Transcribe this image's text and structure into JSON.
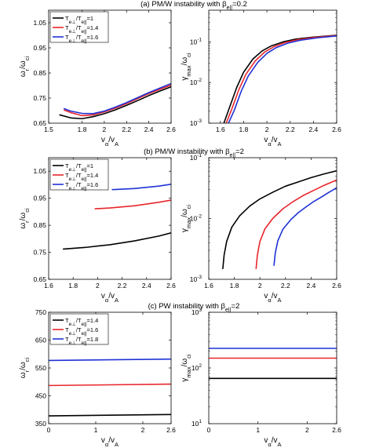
{
  "chart_data": [
    {
      "type": "line",
      "title": "(a) PM/W instability with β_e||=0.2",
      "title_parts": {
        "prefix": "(a) PM/W instability with ",
        "symbol": "β",
        "sub": "e||",
        "suffix": "=0.2"
      },
      "xlabel": "v_α/v_A",
      "ylabel": "ω_r/ω_ci",
      "xlim": [
        1.5,
        2.6
      ],
      "ylim": [
        0.65,
        1.1
      ],
      "yscale": "linear",
      "xticks": [
        "1.5",
        "1.8",
        "2",
        "2.2",
        "2.4",
        "2.6"
      ],
      "xtick_values": [
        1.5,
        1.8,
        2.0,
        2.2,
        2.4,
        2.6
      ],
      "yticks": [
        "0.65",
        "0.75",
        "0.85",
        "0.95",
        "1.05"
      ],
      "ytick_values": [
        0.65,
        0.75,
        0.85,
        0.95,
        1.05
      ],
      "legend": "top-left",
      "series": [
        {
          "name": "T_e⊥/T_e||=1",
          "color": "#000000",
          "x": [
            1.6,
            1.7,
            1.8,
            1.9,
            2.0,
            2.1,
            2.2,
            2.3,
            2.4,
            2.5,
            2.6
          ],
          "y": [
            0.683,
            0.671,
            0.668,
            0.676,
            0.688,
            0.703,
            0.721,
            0.74,
            0.76,
            0.778,
            0.795
          ]
        },
        {
          "name": "T_e⊥/T_e||=1.4",
          "color": "#e8262b",
          "x": [
            1.64,
            1.7,
            1.8,
            1.9,
            2.0,
            2.1,
            2.2,
            2.3,
            2.4,
            2.5,
            2.6
          ],
          "y": [
            0.702,
            0.692,
            0.68,
            0.683,
            0.695,
            0.71,
            0.728,
            0.748,
            0.768,
            0.785,
            0.802
          ]
        },
        {
          "name": "T_e⊥/T_e||=1.6",
          "color": "#1f32d6",
          "x": [
            1.64,
            1.7,
            1.8,
            1.9,
            2.0,
            2.1,
            2.2,
            2.3,
            2.4,
            2.5,
            2.6
          ],
          "y": [
            0.708,
            0.698,
            0.689,
            0.688,
            0.698,
            0.714,
            0.732,
            0.752,
            0.772,
            0.79,
            0.808
          ]
        }
      ]
    },
    {
      "type": "line",
      "xlabel": "v_α/v_A",
      "ylabel": "γ_max/ω_ci",
      "xlim": [
        1.5,
        2.6
      ],
      "ylim": [
        0.001,
        0.6
      ],
      "yscale": "log",
      "xticks": [
        "1.6",
        "1.8",
        "2",
        "2.2",
        "2.4",
        "2.6"
      ],
      "xtick_values": [
        1.6,
        1.8,
        2.0,
        2.2,
        2.4,
        2.6
      ],
      "yticks": [
        "10",
        "10",
        "10"
      ],
      "ytick_values": [
        0.001,
        0.01,
        0.1
      ],
      "ytick_exponents": [
        "-3",
        "-2",
        "-1"
      ],
      "series": [
        {
          "name": "T_e⊥/T_e||=1",
          "color": "#000000",
          "x": [
            1.63,
            1.68,
            1.74,
            1.8,
            1.88,
            1.96,
            2.04,
            2.14,
            2.25,
            2.4,
            2.6
          ],
          "y": [
            0.001,
            0.0025,
            0.0075,
            0.018,
            0.038,
            0.06,
            0.08,
            0.1,
            0.117,
            0.131,
            0.145
          ]
        },
        {
          "name": "T_e⊥/T_e||=1.4",
          "color": "#e8262b",
          "x": [
            1.65,
            1.7,
            1.76,
            1.82,
            1.9,
            1.98,
            2.06,
            2.16,
            2.27,
            2.42,
            2.6
          ],
          "y": [
            0.001,
            0.0023,
            0.0068,
            0.016,
            0.034,
            0.056,
            0.076,
            0.097,
            0.114,
            0.129,
            0.143
          ]
        },
        {
          "name": "T_e⊥/T_e||=1.6",
          "color": "#1f32d6",
          "x": [
            1.67,
            1.72,
            1.78,
            1.84,
            1.92,
            2.0,
            2.08,
            2.18,
            2.29,
            2.44,
            2.6
          ],
          "y": [
            0.001,
            0.0021,
            0.0062,
            0.0145,
            0.031,
            0.052,
            0.072,
            0.093,
            0.11,
            0.126,
            0.14
          ]
        }
      ]
    },
    {
      "type": "line",
      "title": "(b) PM/W instability with β_e||=2",
      "title_parts": {
        "prefix": "(b) PM/W instability with ",
        "symbol": "β",
        "sub": "e||",
        "suffix": "=2"
      },
      "xlabel": "v_α/v_A",
      "ylabel": "ω_r/ω_ci",
      "xlim": [
        1.6,
        2.6
      ],
      "ylim": [
        0.65,
        1.1
      ],
      "yscale": "linear",
      "xticks": [
        "1.6",
        "1.8",
        "2",
        "2.2",
        "2.4",
        "2.6"
      ],
      "xtick_values": [
        1.6,
        1.8,
        2.0,
        2.2,
        2.4,
        2.6
      ],
      "yticks": [
        "0.65",
        "0.75",
        "0.85",
        "0.95",
        "1.05"
      ],
      "ytick_values": [
        0.65,
        0.75,
        0.85,
        0.95,
        1.05
      ],
      "legend": "top-left",
      "series": [
        {
          "name": "T_e⊥/T_e||=1",
          "color": "#000000",
          "x": [
            1.72,
            1.9,
            2.1,
            2.3,
            2.5,
            2.6
          ],
          "y": [
            0.762,
            0.768,
            0.778,
            0.792,
            0.81,
            0.822
          ]
        },
        {
          "name": "T_e⊥/T_e||=1.4",
          "color": "#e8262b",
          "x": [
            1.98,
            2.1,
            2.3,
            2.5,
            2.6
          ],
          "y": [
            0.911,
            0.914,
            0.922,
            0.935,
            0.943
          ]
        },
        {
          "name": "T_e⊥/T_e||=1.6",
          "color": "#1f32d6",
          "x": [
            2.12,
            2.3,
            2.5,
            2.6
          ],
          "y": [
            0.982,
            0.986,
            0.995,
            1.002
          ]
        }
      ]
    },
    {
      "type": "line",
      "xlabel": "v_α/v_A",
      "ylabel": "γ_max/ω_ci",
      "xlim": [
        1.6,
        2.6
      ],
      "ylim": [
        0.001,
        0.1
      ],
      "yscale": "log",
      "xticks": [
        "1.6",
        "1.8",
        "2",
        "2.2",
        "2.4",
        "2.6"
      ],
      "xtick_values": [
        1.6,
        1.8,
        2.0,
        2.2,
        2.4,
        2.6
      ],
      "yticks": [
        "10",
        "10",
        "10"
      ],
      "ytick_values": [
        0.001,
        0.01,
        0.1
      ],
      "ytick_exponents": [
        "-3",
        "-2",
        "-1"
      ],
      "series": [
        {
          "name": "T_e⊥/T_e||=1",
          "color": "#000000",
          "x": [
            1.71,
            1.72,
            1.74,
            1.78,
            1.84,
            1.92,
            2.0,
            2.1,
            2.2,
            2.3,
            2.4,
            2.5,
            2.6
          ],
          "y": [
            0.0015,
            0.0025,
            0.0042,
            0.0072,
            0.011,
            0.016,
            0.021,
            0.027,
            0.034,
            0.04,
            0.047,
            0.054,
            0.061
          ]
        },
        {
          "name": "T_e⊥/T_e||=1.4",
          "color": "#e8262b",
          "x": [
            1.97,
            1.98,
            2.0,
            2.04,
            2.1,
            2.18,
            2.26,
            2.34,
            2.42,
            2.5,
            2.6
          ],
          "y": [
            0.0015,
            0.0025,
            0.0042,
            0.0068,
            0.01,
            0.0145,
            0.019,
            0.024,
            0.029,
            0.035,
            0.043
          ]
        },
        {
          "name": "T_e⊥/T_e||=1.6",
          "color": "#1f32d6",
          "x": [
            2.11,
            2.12,
            2.14,
            2.18,
            2.24,
            2.3,
            2.36,
            2.42,
            2.48,
            2.54,
            2.6
          ],
          "y": [
            0.0017,
            0.0027,
            0.0043,
            0.0067,
            0.0095,
            0.0125,
            0.0155,
            0.019,
            0.0225,
            0.027,
            0.032
          ]
        }
      ]
    },
    {
      "type": "line",
      "title": "(c) PW instability with β_e||=2",
      "title_parts": {
        "prefix": "(c) PW instability with ",
        "symbol": "β",
        "sub": "e||",
        "suffix": "=2"
      },
      "xlabel": "v_α/v_A",
      "ylabel": "ω_r/ω_ci",
      "xlim": [
        0,
        2.6
      ],
      "ylim": [
        350,
        750
      ],
      "yscale": "linear",
      "xticks": [
        "0",
        "1",
        "2",
        "2.6"
      ],
      "xtick_values": [
        0,
        1,
        2,
        2.6
      ],
      "yticks": [
        "350",
        "450",
        "550",
        "650",
        "750"
      ],
      "ytick_values": [
        350,
        450,
        550,
        650,
        750
      ],
      "legend": "top-left",
      "series": [
        {
          "name": "T_e⊥/T_e||=1.4",
          "color": "#000000",
          "x": [
            0,
            2.6
          ],
          "y": [
            378,
            383
          ]
        },
        {
          "name": "T_e⊥/T_e||=1.6",
          "color": "#e8262b",
          "x": [
            0,
            2.6
          ],
          "y": [
            487,
            492
          ]
        },
        {
          "name": "T_e⊥/T_e||=1.8",
          "color": "#1f32d6",
          "x": [
            0,
            2.6
          ],
          "y": [
            577,
            582
          ]
        }
      ]
    },
    {
      "type": "line",
      "xlabel": "v_α/v_A",
      "ylabel": "γ_max/ω_ci",
      "xlim": [
        0,
        2.6
      ],
      "ylim": [
        10,
        1000
      ],
      "yscale": "log",
      "xticks": [
        "0",
        "1",
        "2",
        "2.6"
      ],
      "xtick_values": [
        0,
        1,
        2,
        2.6
      ],
      "yticks": [
        "10",
        "10",
        "10"
      ],
      "ytick_values": [
        10,
        100,
        1000
      ],
      "ytick_exponents": [
        "1",
        "2",
        "3"
      ],
      "series": [
        {
          "name": "T_e⊥/T_e||=1.4",
          "color": "#000000",
          "x": [
            0,
            2.6
          ],
          "y": [
            65,
            65
          ]
        },
        {
          "name": "T_e⊥/T_e||=1.6",
          "color": "#e8262b",
          "x": [
            0,
            2.6
          ],
          "y": [
            150,
            150
          ]
        },
        {
          "name": "T_e⊥/T_e||=1.8",
          "color": "#1f32d6",
          "x": [
            0,
            2.6
          ],
          "y": [
            225,
            225
          ]
        }
      ]
    }
  ]
}
